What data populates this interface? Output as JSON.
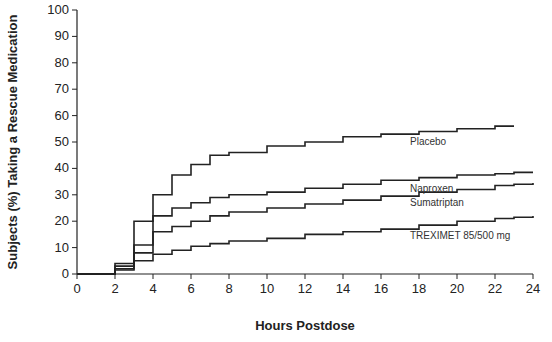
{
  "chart_data": {
    "type": "step",
    "x_label": "Hours Postdose",
    "y_label": "Subjects (%) Taking a Rescue Medication",
    "x": [
      0,
      2,
      3,
      4,
      5,
      6,
      7,
      8,
      10,
      12,
      14,
      16,
      18,
      20,
      22,
      23,
      24
    ],
    "series": [
      {
        "name": "Placebo",
        "color": "#222222",
        "values": [
          0,
          4,
          20,
          30,
          37.5,
          41.5,
          45,
          46,
          48.5,
          50,
          52,
          53,
          54,
          55,
          56,
          56,
          null
        ]
      },
      {
        "name": "Naproxen",
        "color": "#222222",
        "values": [
          0,
          3,
          11,
          22,
          25,
          27,
          29,
          30,
          31,
          32.5,
          34,
          35.5,
          36.5,
          37.5,
          38,
          38.5,
          38.5
        ]
      },
      {
        "name": "Sumatriptan",
        "color": "#222222",
        "values": [
          0,
          2,
          8,
          16,
          18,
          20,
          22,
          23.5,
          25,
          26.5,
          28,
          29.5,
          31,
          32,
          33.5,
          34,
          34.5
        ]
      },
      {
        "name": "TREXIMET 85/500 mg",
        "color": "#222222",
        "values": [
          0,
          1.5,
          5,
          7.5,
          9,
          10.5,
          11.5,
          12.5,
          13.5,
          15,
          16,
          17,
          18.5,
          20,
          21,
          21.5,
          22
        ]
      }
    ],
    "xlim": [
      0,
      24
    ],
    "xticks": [
      0,
      2,
      4,
      6,
      8,
      10,
      12,
      14,
      16,
      18,
      20,
      22,
      24
    ],
    "ylim": [
      0,
      100
    ],
    "yticks": [
      0,
      10,
      20,
      30,
      40,
      50,
      60,
      70,
      80,
      90,
      100
    ],
    "grid": false
  }
}
